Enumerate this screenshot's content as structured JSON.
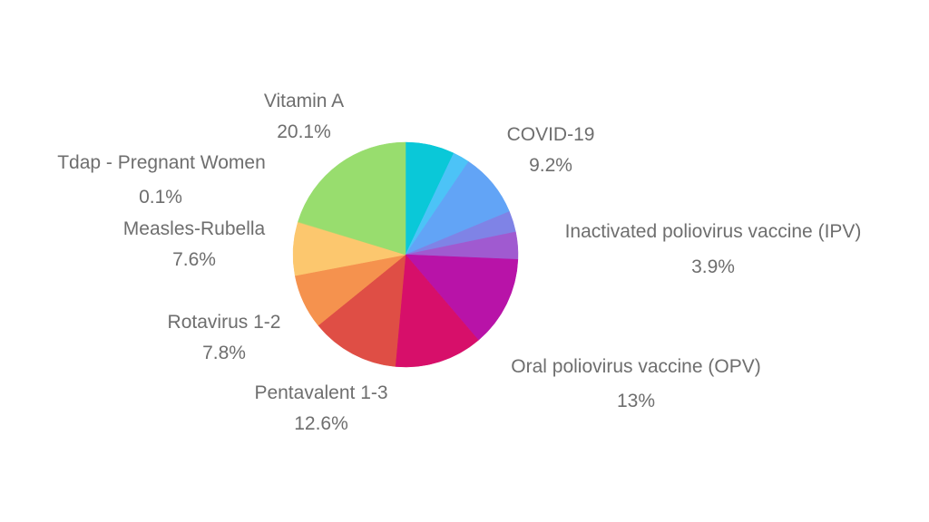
{
  "chart_data": {
    "type": "pie",
    "title": "",
    "start_angle_deg": 0,
    "direction": "clockwise",
    "slices": [
      {
        "label": "",
        "value": 7.0,
        "percent_text": "",
        "color": "#0ac8d8"
      },
      {
        "label": "",
        "value": 2.4,
        "percent_text": "",
        "color": "#4cc3f7"
      },
      {
        "label": "COVID-19",
        "value": 9.2,
        "percent_text": "9.2%",
        "color": "#62a4f6"
      },
      {
        "label": "",
        "value": 3.0,
        "percent_text": "",
        "color": "#7f83e6"
      },
      {
        "label": "Inactivated poliovirus vaccine (IPV)",
        "value": 3.9,
        "percent_text": "3.9%",
        "color": "#a05ad0"
      },
      {
        "label": "Oral poliovirus vaccine (OPV)",
        "value": 13.0,
        "percent_text": "13%",
        "color": "#b813a8"
      },
      {
        "label": "",
        "value": 12.6,
        "percent_text": "",
        "color": "#d70f6a"
      },
      {
        "label": "Pentavalent 1-3",
        "value": 12.6,
        "percent_text": "12.6%",
        "color": "#df4e45"
      },
      {
        "label": "Rotavirus 1-2",
        "value": 7.8,
        "percent_text": "7.8%",
        "color": "#f5924e"
      },
      {
        "label": "Measles-Rubella",
        "value": 7.6,
        "percent_text": "7.6%",
        "color": "#fcc76e"
      },
      {
        "label": "Tdap - Pregnant Women",
        "value": 0.1,
        "percent_text": "0.1%",
        "color": "#c6d36c"
      },
      {
        "label": "Vitamin A",
        "value": 20.1,
        "percent_text": "20.1%",
        "color": "#98dd6e"
      }
    ]
  }
}
